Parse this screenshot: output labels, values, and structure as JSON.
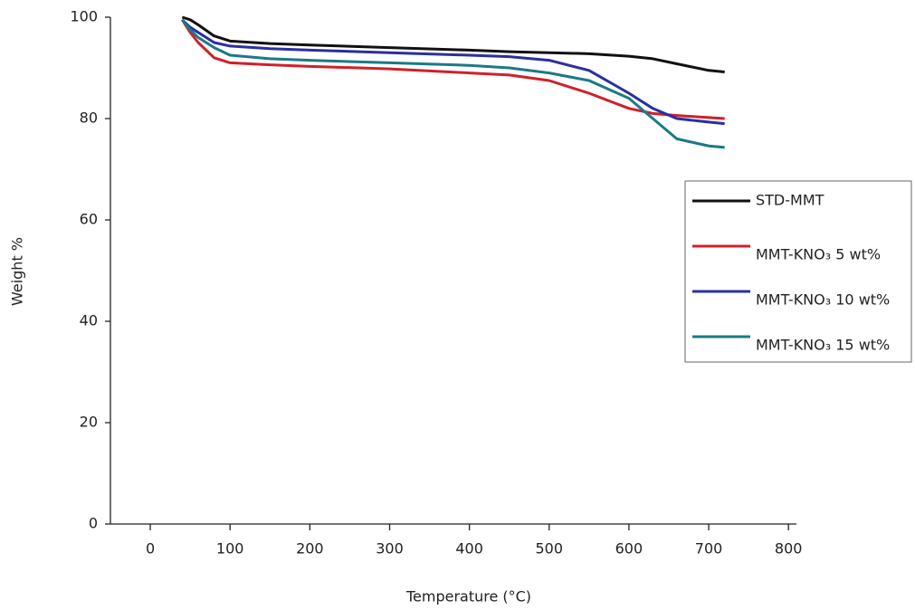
{
  "chart_data": {
    "type": "line",
    "x_label": "Temperature (°C)",
    "y_label": "Weight %",
    "x": [
      40,
      50,
      60,
      80,
      100,
      150,
      200,
      300,
      400,
      450,
      500,
      550,
      600,
      630,
      660,
      700,
      720
    ],
    "series": [
      {
        "name": "STD-MMT",
        "color": "#111111",
        "values": [
          100,
          99.5,
          98.5,
          96.3,
          95.3,
          94.8,
          94.5,
          94,
          93.5,
          93.2,
          93,
          92.8,
          92.3,
          91.8,
          90.8,
          89.5,
          89.2
        ]
      },
      {
        "name": "MMT-KNO₃ 5 wt%",
        "color": "#d0202a",
        "values": [
          99.5,
          97,
          95,
          92,
          91,
          90.6,
          90.3,
          89.8,
          89,
          88.6,
          87.5,
          85,
          82,
          81,
          80.6,
          80.2,
          80
        ]
      },
      {
        "name": "MMT-KNO₃ 10 wt%",
        "color": "#2a2fa0",
        "values": [
          99.5,
          98,
          97,
          95,
          94.3,
          93.8,
          93.5,
          93,
          92.5,
          92.2,
          91.5,
          89.5,
          85,
          82,
          80,
          79.3,
          79
        ]
      },
      {
        "name": "MMT-KNO₃ 15 wt%",
        "color": "#1a7a86",
        "values": [
          99.5,
          97.5,
          96,
          94,
          92.5,
          91.8,
          91.5,
          91,
          90.5,
          90,
          89,
          87.5,
          84,
          80,
          76,
          74.6,
          74.3
        ]
      }
    ],
    "xlim": [
      -50,
      810
    ],
    "xticks": [
      0,
      100,
      200,
      300,
      400,
      500,
      600,
      700,
      800
    ],
    "ylim": [
      0,
      100
    ],
    "yticks": [
      0,
      20,
      40,
      60,
      80,
      100
    ],
    "grid": false,
    "legend": "right"
  }
}
